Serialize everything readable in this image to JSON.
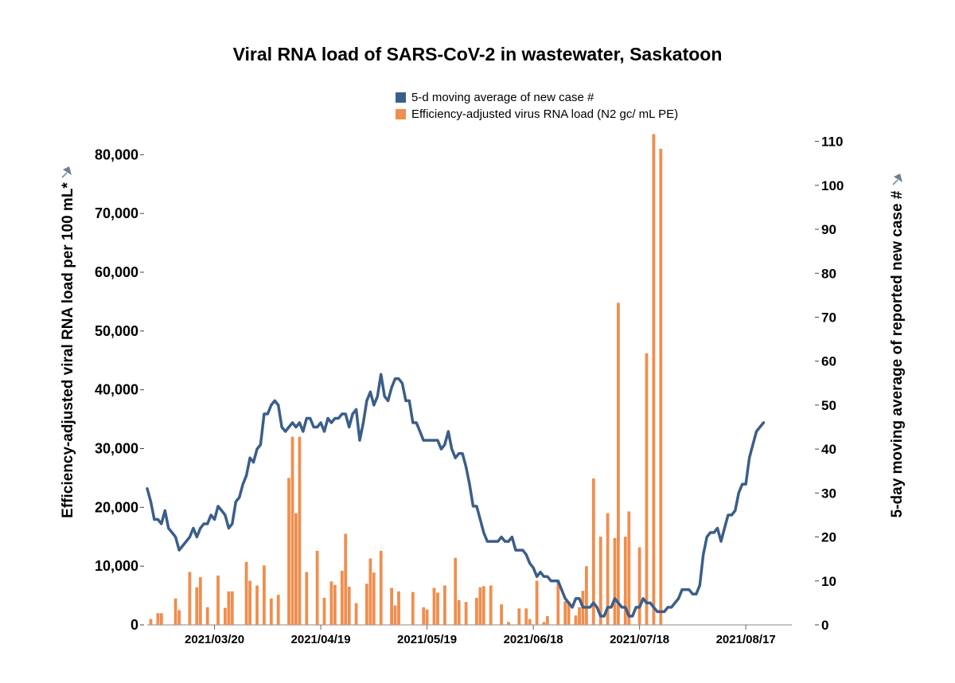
{
  "chart_data": {
    "type": "bar+line (dual axis)",
    "title": "Viral RNA load of SARS-CoV-2 in wastewater, Saskatoon",
    "ylabel_left": "Efficiency-adjusted viral RNA load per 100 mL*",
    "ylabel_right": "5-day moving average of reported new case #",
    "ylim_left": [
      0,
      86000
    ],
    "ylim_right": [
      0,
      115
    ],
    "yticks_left": [
      "0",
      "10,000",
      "20,000",
      "30,000",
      "40,000",
      "50,000",
      "60,000",
      "70,000",
      "80,000"
    ],
    "yticks_right": [
      "0",
      "10",
      "20",
      "30",
      "40",
      "50",
      "60",
      "70",
      "80",
      "90",
      "100",
      "110"
    ],
    "xlim": [
      "2021-03-01",
      "2021-08-30"
    ],
    "xticks": [
      "2021/03/20",
      "2021/04/19",
      "2021/05/19",
      "2021/06/18",
      "2021/07/18",
      "2021/08/17"
    ],
    "grid": false,
    "legend_position": "top-center",
    "series": [
      {
        "name": "5-d moving average of new case #",
        "type": "line",
        "axis": "right",
        "color": "#3b5e8a",
        "points": [
          [
            "2021-03-01",
            31
          ],
          [
            "2021-03-02",
            28
          ],
          [
            "2021-03-03",
            24
          ],
          [
            "2021-03-04",
            24
          ],
          [
            "2021-03-05",
            23
          ],
          [
            "2021-03-06",
            26
          ],
          [
            "2021-03-07",
            22
          ],
          [
            "2021-03-08",
            21
          ],
          [
            "2021-03-09",
            20
          ],
          [
            "2021-03-10",
            17
          ],
          [
            "2021-03-11",
            18
          ],
          [
            "2021-03-12",
            19
          ],
          [
            "2021-03-13",
            20
          ],
          [
            "2021-03-14",
            22
          ],
          [
            "2021-03-15",
            20
          ],
          [
            "2021-03-16",
            22
          ],
          [
            "2021-03-17",
            23
          ],
          [
            "2021-03-18",
            23
          ],
          [
            "2021-03-19",
            25
          ],
          [
            "2021-03-20",
            24
          ],
          [
            "2021-03-21",
            27
          ],
          [
            "2021-03-22",
            26
          ],
          [
            "2021-03-23",
            25
          ],
          [
            "2021-03-24",
            22
          ],
          [
            "2021-03-25",
            23
          ],
          [
            "2021-03-26",
            28
          ],
          [
            "2021-03-27",
            29
          ],
          [
            "2021-03-28",
            32
          ],
          [
            "2021-03-29",
            34
          ],
          [
            "2021-03-30",
            38
          ],
          [
            "2021-03-31",
            37
          ],
          [
            "2021-04-01",
            40
          ],
          [
            "2021-04-02",
            41
          ],
          [
            "2021-04-03",
            48
          ],
          [
            "2021-04-04",
            48
          ],
          [
            "2021-04-05",
            50
          ],
          [
            "2021-04-06",
            51
          ],
          [
            "2021-04-07",
            50
          ],
          [
            "2021-04-08",
            45
          ],
          [
            "2021-04-09",
            44
          ],
          [
            "2021-04-10",
            45
          ],
          [
            "2021-04-11",
            46
          ],
          [
            "2021-04-12",
            45
          ],
          [
            "2021-04-13",
            46
          ],
          [
            "2021-04-14",
            44
          ],
          [
            "2021-04-15",
            47
          ],
          [
            "2021-04-16",
            47
          ],
          [
            "2021-04-17",
            45
          ],
          [
            "2021-04-18",
            45
          ],
          [
            "2021-04-19",
            46
          ],
          [
            "2021-04-20",
            44
          ],
          [
            "2021-04-21",
            47
          ],
          [
            "2021-04-22",
            46
          ],
          [
            "2021-04-23",
            47
          ],
          [
            "2021-04-24",
            47
          ],
          [
            "2021-04-25",
            48
          ],
          [
            "2021-04-26",
            48
          ],
          [
            "2021-04-27",
            45
          ],
          [
            "2021-04-28",
            48
          ],
          [
            "2021-04-29",
            49
          ],
          [
            "2021-04-30",
            42
          ],
          [
            "2021-05-01",
            46
          ],
          [
            "2021-05-02",
            51
          ],
          [
            "2021-05-03",
            53
          ],
          [
            "2021-05-04",
            50
          ],
          [
            "2021-05-05",
            52
          ],
          [
            "2021-05-06",
            57
          ],
          [
            "2021-05-07",
            52
          ],
          [
            "2021-05-08",
            51
          ],
          [
            "2021-05-09",
            54
          ],
          [
            "2021-05-10",
            56
          ],
          [
            "2021-05-11",
            56
          ],
          [
            "2021-05-12",
            55
          ],
          [
            "2021-05-13",
            51
          ],
          [
            "2021-05-14",
            51
          ],
          [
            "2021-05-15",
            46
          ],
          [
            "2021-05-16",
            46
          ],
          [
            "2021-05-17",
            44
          ],
          [
            "2021-05-18",
            42
          ],
          [
            "2021-05-19",
            42
          ],
          [
            "2021-05-20",
            42
          ],
          [
            "2021-05-21",
            42
          ],
          [
            "2021-05-22",
            42
          ],
          [
            "2021-05-23",
            40
          ],
          [
            "2021-05-24",
            41
          ],
          [
            "2021-05-25",
            44
          ],
          [
            "2021-05-26",
            40
          ],
          [
            "2021-05-27",
            38
          ],
          [
            "2021-05-28",
            39
          ],
          [
            "2021-05-29",
            39
          ],
          [
            "2021-05-30",
            36
          ],
          [
            "2021-05-31",
            32
          ],
          [
            "2021-06-01",
            27
          ],
          [
            "2021-06-02",
            27
          ],
          [
            "2021-06-03",
            24
          ],
          [
            "2021-06-04",
            21
          ],
          [
            "2021-06-05",
            19
          ],
          [
            "2021-06-06",
            19
          ],
          [
            "2021-06-07",
            19
          ],
          [
            "2021-06-08",
            19
          ],
          [
            "2021-06-09",
            20
          ],
          [
            "2021-06-10",
            19
          ],
          [
            "2021-06-11",
            19
          ],
          [
            "2021-06-12",
            20
          ],
          [
            "2021-06-13",
            17
          ],
          [
            "2021-06-14",
            17
          ],
          [
            "2021-06-15",
            17
          ],
          [
            "2021-06-16",
            16
          ],
          [
            "2021-06-17",
            14
          ],
          [
            "2021-06-18",
            13
          ],
          [
            "2021-06-19",
            11
          ],
          [
            "2021-06-20",
            12
          ],
          [
            "2021-06-21",
            11
          ],
          [
            "2021-06-22",
            11
          ],
          [
            "2021-06-23",
            10
          ],
          [
            "2021-06-24",
            10
          ],
          [
            "2021-06-25",
            10
          ],
          [
            "2021-06-26",
            8
          ],
          [
            "2021-06-27",
            6
          ],
          [
            "2021-06-28",
            5
          ],
          [
            "2021-06-29",
            4
          ],
          [
            "2021-06-30",
            6
          ],
          [
            "2021-07-01",
            6
          ],
          [
            "2021-07-02",
            4
          ],
          [
            "2021-07-03",
            4
          ],
          [
            "2021-07-04",
            4
          ],
          [
            "2021-07-05",
            5
          ],
          [
            "2021-07-06",
            4
          ],
          [
            "2021-07-07",
            2
          ],
          [
            "2021-07-08",
            2
          ],
          [
            "2021-07-09",
            4
          ],
          [
            "2021-07-10",
            4
          ],
          [
            "2021-07-11",
            6
          ],
          [
            "2021-07-12",
            5
          ],
          [
            "2021-07-13",
            4
          ],
          [
            "2021-07-14",
            4
          ],
          [
            "2021-07-15",
            2
          ],
          [
            "2021-07-16",
            2
          ],
          [
            "2021-07-17",
            4
          ],
          [
            "2021-07-18",
            4
          ],
          [
            "2021-07-19",
            6
          ],
          [
            "2021-07-20",
            5
          ],
          [
            "2021-07-21",
            5
          ],
          [
            "2021-07-22",
            4
          ],
          [
            "2021-07-23",
            3
          ],
          [
            "2021-07-24",
            3
          ],
          [
            "2021-07-25",
            3
          ],
          [
            "2021-07-26",
            4
          ],
          [
            "2021-07-27",
            4
          ],
          [
            "2021-07-28",
            5
          ],
          [
            "2021-07-29",
            6
          ],
          [
            "2021-07-30",
            8
          ],
          [
            "2021-07-31",
            8
          ],
          [
            "2021-08-01",
            8
          ],
          [
            "2021-08-02",
            7
          ],
          [
            "2021-08-03",
            7
          ],
          [
            "2021-08-04",
            9
          ],
          [
            "2021-08-05",
            16
          ],
          [
            "2021-08-06",
            20
          ],
          [
            "2021-08-07",
            21
          ],
          [
            "2021-08-08",
            21
          ],
          [
            "2021-08-09",
            22
          ],
          [
            "2021-08-10",
            19
          ],
          [
            "2021-08-11",
            22
          ],
          [
            "2021-08-12",
            25
          ],
          [
            "2021-08-13",
            25
          ],
          [
            "2021-08-14",
            26
          ],
          [
            "2021-08-15",
            30
          ],
          [
            "2021-08-16",
            32
          ],
          [
            "2021-08-17",
            32
          ],
          [
            "2021-08-18",
            38
          ],
          [
            "2021-08-19",
            41
          ],
          [
            "2021-08-20",
            44
          ],
          [
            "2021-08-21",
            45
          ],
          [
            "2021-08-22",
            46
          ]
        ]
      },
      {
        "name": "Efficiency-adjusted virus RNA load (N2 gc/ mL PE)",
        "type": "bar",
        "axis": "left",
        "color": "#ef8e4f",
        "points": [
          [
            "2021-03-02",
            1000
          ],
          [
            "2021-03-04",
            2000
          ],
          [
            "2021-03-05",
            2000
          ],
          [
            "2021-03-09",
            4500
          ],
          [
            "2021-03-10",
            2500
          ],
          [
            "2021-03-13",
            9000
          ],
          [
            "2021-03-15",
            6400
          ],
          [
            "2021-03-16",
            8100
          ],
          [
            "2021-03-18",
            3000
          ],
          [
            "2021-03-21",
            8400
          ],
          [
            "2021-03-23",
            2900
          ],
          [
            "2021-03-24",
            5700
          ],
          [
            "2021-03-25",
            5700
          ],
          [
            "2021-03-29",
            10700
          ],
          [
            "2021-03-30",
            7500
          ],
          [
            "2021-04-01",
            6700
          ],
          [
            "2021-04-03",
            10100
          ],
          [
            "2021-04-05",
            4500
          ],
          [
            "2021-04-07",
            5100
          ],
          [
            "2021-04-10",
            25000
          ],
          [
            "2021-04-11",
            32000
          ],
          [
            "2021-04-12",
            19000
          ],
          [
            "2021-04-13",
            32000
          ],
          [
            "2021-04-15",
            9000
          ],
          [
            "2021-04-18",
            12600
          ],
          [
            "2021-04-20",
            4600
          ],
          [
            "2021-04-22",
            7400
          ],
          [
            "2021-04-23",
            6800
          ],
          [
            "2021-04-25",
            9200
          ],
          [
            "2021-04-26",
            15500
          ],
          [
            "2021-04-27",
            6500
          ],
          [
            "2021-04-29",
            3700
          ],
          [
            "2021-05-02",
            7000
          ],
          [
            "2021-05-03",
            11300
          ],
          [
            "2021-05-04",
            8900
          ],
          [
            "2021-05-06",
            12600
          ],
          [
            "2021-05-09",
            6300
          ],
          [
            "2021-05-10",
            3300
          ],
          [
            "2021-05-11",
            5700
          ],
          [
            "2021-05-15",
            5600
          ],
          [
            "2021-05-18",
            3000
          ],
          [
            "2021-05-19",
            2600
          ],
          [
            "2021-05-21",
            6300
          ],
          [
            "2021-05-22",
            5500
          ],
          [
            "2021-05-24",
            6700
          ],
          [
            "2021-05-27",
            11400
          ],
          [
            "2021-05-28",
            4200
          ],
          [
            "2021-05-30",
            3900
          ],
          [
            "2021-06-02",
            4600
          ],
          [
            "2021-06-03",
            6400
          ],
          [
            "2021-06-04",
            6600
          ],
          [
            "2021-06-06",
            6700
          ],
          [
            "2021-06-09",
            3500
          ],
          [
            "2021-06-11",
            500
          ],
          [
            "2021-06-14",
            2800
          ],
          [
            "2021-06-16",
            2800
          ],
          [
            "2021-06-17",
            1000
          ],
          [
            "2021-06-19",
            7500
          ],
          [
            "2021-06-21",
            500
          ],
          [
            "2021-06-22",
            1500
          ],
          [
            "2021-06-25",
            7500
          ],
          [
            "2021-06-27",
            4000
          ],
          [
            "2021-06-28",
            4000
          ],
          [
            "2021-06-30",
            1600
          ],
          [
            "2021-07-01",
            3000
          ],
          [
            "2021-07-02",
            5800
          ],
          [
            "2021-07-03",
            10000
          ],
          [
            "2021-07-05",
            24900
          ],
          [
            "2021-07-07",
            15000
          ],
          [
            "2021-07-09",
            19000
          ],
          [
            "2021-07-11",
            14800
          ],
          [
            "2021-07-12",
            54800
          ],
          [
            "2021-07-14",
            15000
          ],
          [
            "2021-07-15",
            19300
          ],
          [
            "2021-07-18",
            13200
          ],
          [
            "2021-07-20",
            46200
          ],
          [
            "2021-07-22",
            83500
          ],
          [
            "2021-07-24",
            81000
          ]
        ]
      }
    ],
    "legend": [
      {
        "label": "5-d moving average of new case #",
        "color": "#3b5e8a"
      },
      {
        "label": "Efficiency-adjusted virus RNA load (N2 gc/ mL PE)",
        "color": "#ef8e4f"
      }
    ]
  }
}
